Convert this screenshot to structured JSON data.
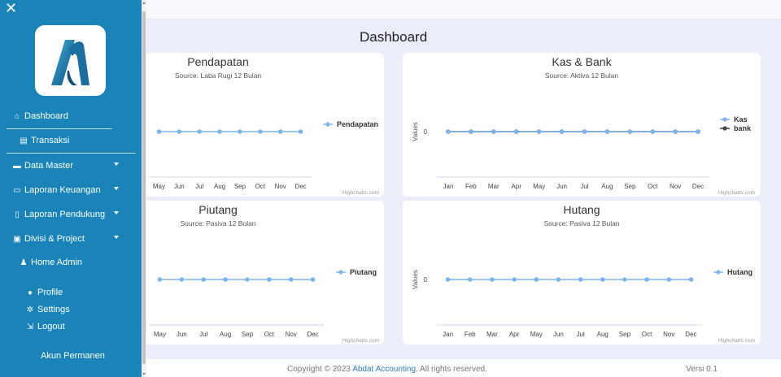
{
  "sidebar": {
    "close_icon": "close-icon",
    "logo": "abdat-accounting-logo",
    "items": [
      {
        "label": "Dashboard",
        "icon": "home-icon",
        "glyph": "⌂"
      },
      {
        "label": "Transaksi",
        "icon": "document-icon",
        "glyph": "▤"
      },
      {
        "label": "Data Master",
        "icon": "folder-icon",
        "glyph": "▬"
      },
      {
        "label": "Laporan Keuangan",
        "icon": "file-icon",
        "glyph": "▭"
      },
      {
        "label": "Laporan Pendukung",
        "icon": "clipboard-icon",
        "glyph": "▯"
      },
      {
        "label": "Divisi & Project",
        "icon": "project-icon",
        "glyph": "▣"
      },
      {
        "label": "Home Admin",
        "icon": "bell-icon",
        "glyph": "♟"
      },
      {
        "label": "Profile",
        "icon": "user-icon",
        "glyph": "●"
      },
      {
        "label": "Settings",
        "icon": "gear-icon",
        "glyph": "✲"
      },
      {
        "label": "Logout",
        "icon": "logout-icon",
        "glyph": "⇲"
      },
      {
        "label": "Akun Permanen",
        "icon": "",
        "glyph": ""
      }
    ]
  },
  "page": {
    "title": "Dashboard"
  },
  "footer": {
    "copyright_prefix": "Copyright © 2023 ",
    "brand": "Abdat Accounting",
    "copyright_suffix": ". All rights reserved.",
    "version": "Versi 0.1"
  },
  "colors": {
    "sidebar": "#1a84b8",
    "series_light": "#7cb5ec",
    "series_dark": "#434348",
    "background": "#ebedf8"
  },
  "chart_data": [
    {
      "type": "line",
      "title": "Pendapatan",
      "subtitle": "Source: Laba Rugi 12 Bulan",
      "categories": [
        "May",
        "Jun",
        "Jul",
        "Aug",
        "Sep",
        "Oct",
        "Nov",
        "Dec"
      ],
      "series": [
        {
          "name": "Pendapatan",
          "values": [
            0,
            0,
            0,
            0,
            0,
            0,
            0,
            0
          ]
        }
      ],
      "credit": "Highcharts.com",
      "legend": "right"
    },
    {
      "type": "line",
      "title": "Kas & Bank",
      "subtitle": "Source: Aktiva 12 Bulan",
      "categories": [
        "Jan",
        "Feb",
        "Mar",
        "Apr",
        "May",
        "Jun",
        "Jul",
        "Aug",
        "Sep",
        "Oct",
        "Nov",
        "Dec"
      ],
      "ylabel": "Values",
      "y_ticks": [
        "0"
      ],
      "series": [
        {
          "name": "Kas",
          "values": [
            0,
            0,
            0,
            0,
            0,
            0,
            0,
            0,
            0,
            0,
            0,
            0
          ]
        },
        {
          "name": "bank",
          "values": [
            0,
            0,
            0,
            0,
            0,
            0,
            0,
            0,
            0,
            0,
            0,
            0
          ]
        }
      ],
      "credit": "Highcharts.com",
      "legend": "right"
    },
    {
      "type": "line",
      "title": "Piutang",
      "subtitle": "Source: Pasiva 12 Bulan",
      "categories": [
        "May",
        "Jun",
        "Jul",
        "Aug",
        "Sep",
        "Oct",
        "Nov",
        "Dec"
      ],
      "series": [
        {
          "name": "Piutang",
          "values": [
            0,
            0,
            0,
            0,
            0,
            0,
            0,
            0
          ]
        }
      ],
      "credit": "Highcharts.com",
      "legend": "right"
    },
    {
      "type": "line",
      "title": "Hutang",
      "subtitle": "Source: Pasiva 12 Bulan",
      "categories": [
        "Jan",
        "Feb",
        "Mar",
        "Apr",
        "May",
        "Jun",
        "Jul",
        "Aug",
        "Sep",
        "Oct",
        "Nov",
        "Dec"
      ],
      "ylabel": "Values",
      "y_ticks": [
        "0"
      ],
      "series": [
        {
          "name": "Hutang",
          "values": [
            0,
            0,
            0,
            0,
            0,
            0,
            0,
            0,
            0,
            0,
            0,
            0
          ]
        }
      ],
      "credit": "Highcharts.com",
      "legend": "right"
    }
  ]
}
